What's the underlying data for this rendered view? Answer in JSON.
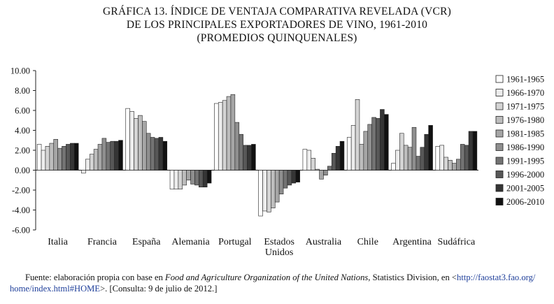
{
  "title": {
    "line1": "GRÁFICA 13. ÍNDICE DE VENTAJA COMPARATIVA REVELADA (VCR)",
    "line2": "DE LOS PRINCIPALES EXPORTADORES DE VINO, 1961-2010",
    "line3": "(PROMEDIOS QUINQUENALES)"
  },
  "source": {
    "prefix": "Fuente: elaboración propia con base en",
    "italic": "Food and Agriculture Organization of the United Nations",
    "mid": ", Statistics Division, en <",
    "url_part1": "http://faostat3.fao.org/",
    "url_part2": "home/index.html#HOME",
    "suffix": ">. [Consulta: 9 de julio de 2012.]"
  },
  "chart_data": {
    "type": "bar",
    "title": "Índice de ventaja comparativa revelada (VCR) de los principales exportadores de vino, 1961-2010 (promedios quinquenales)",
    "xlabel": "",
    "ylabel": "",
    "ylim": [
      -6,
      10
    ],
    "yticks": [
      10,
      8,
      6,
      4,
      2,
      0,
      -2,
      -4,
      -6
    ],
    "ytick_labels": [
      "10.00",
      "8.00",
      "6.00",
      "4.00",
      "2.00",
      "0.00",
      "-2.00",
      "-4.00",
      "-6.00"
    ],
    "legend_position": "right",
    "categories": [
      "Italia",
      "Francia",
      "España",
      "Alemania",
      "Portugal",
      "Estados Unidos",
      "Australia",
      "Chile",
      "Argentina",
      "Sudáfrica"
    ],
    "category_label_lines": [
      [
        "Italia"
      ],
      [
        "Francia"
      ],
      [
        "España"
      ],
      [
        "Alemania"
      ],
      [
        "Portugal"
      ],
      [
        "Estados",
        "Unidos"
      ],
      [
        "Australia"
      ],
      [
        "Chile"
      ],
      [
        "Argentina"
      ],
      [
        "Sudáfrica"
      ]
    ],
    "series": [
      {
        "name": "1961-1965",
        "color": "#ffffff",
        "values": [
          2.6,
          -0.3,
          6.2,
          -1.9,
          6.7,
          -4.6,
          2.1,
          3.3,
          0.7,
          2.4
        ]
      },
      {
        "name": "1966-1970",
        "color": "#ededed",
        "values": [
          2.0,
          1.1,
          5.9,
          -1.9,
          6.8,
          -4.1,
          2.0,
          4.5,
          2.0,
          2.5
        ]
      },
      {
        "name": "1971-1975",
        "color": "#d4d4d4",
        "values": [
          2.4,
          1.6,
          5.2,
          -1.9,
          7.0,
          -4.2,
          1.2,
          7.1,
          3.7,
          1.3
        ]
      },
      {
        "name": "1976-1980",
        "color": "#bdbdbd",
        "values": [
          2.7,
          2.1,
          5.5,
          -1.5,
          7.4,
          -3.8,
          0.1,
          2.6,
          2.5,
          1.0
        ]
      },
      {
        "name": "1981-1985",
        "color": "#a6a6a6",
        "values": [
          3.1,
          2.6,
          4.9,
          -1.0,
          7.6,
          -3.2,
          -0.9,
          3.9,
          2.3,
          0.7
        ]
      },
      {
        "name": "1986-1990",
        "color": "#8f8f8f",
        "values": [
          2.2,
          3.2,
          3.7,
          -1.4,
          4.8,
          -2.4,
          -0.5,
          4.6,
          4.3,
          1.1
        ]
      },
      {
        "name": "1991-1995",
        "color": "#737373",
        "values": [
          2.4,
          2.8,
          3.3,
          -1.5,
          3.6,
          -1.8,
          0.4,
          5.3,
          1.4,
          2.6
        ]
      },
      {
        "name": "1996-2000",
        "color": "#575757",
        "values": [
          2.6,
          2.9,
          3.2,
          -1.7,
          2.5,
          -1.5,
          1.7,
          5.2,
          2.3,
          2.5
        ]
      },
      {
        "name": "2001-2005",
        "color": "#353535",
        "values": [
          2.7,
          2.9,
          3.3,
          -1.7,
          2.5,
          -1.3,
          2.4,
          6.1,
          3.6,
          3.9
        ]
      },
      {
        "name": "2006-2010",
        "color": "#111111",
        "values": [
          2.7,
          3.0,
          2.9,
          -1.3,
          2.6,
          -1.2,
          2.9,
          5.6,
          4.5,
          3.9
        ]
      }
    ]
  }
}
